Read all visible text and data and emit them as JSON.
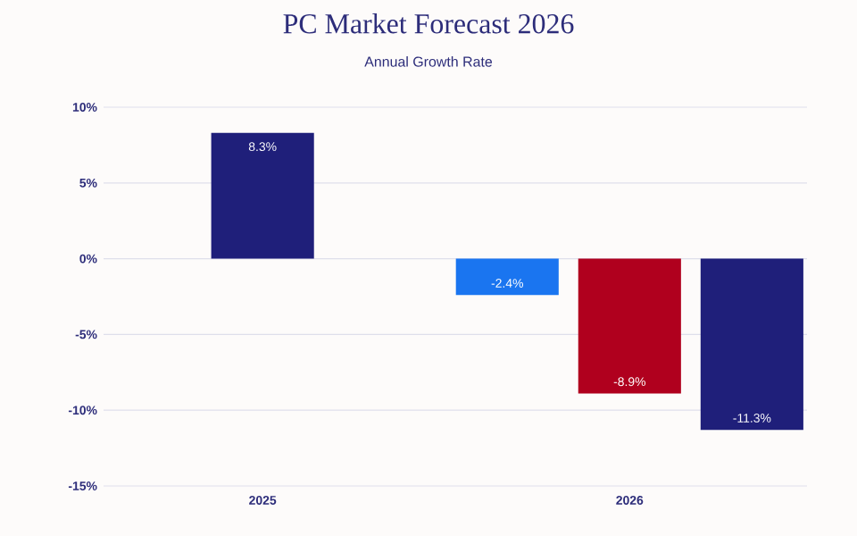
{
  "chart_data": {
    "type": "bar",
    "title": "PC Market Forecast 2026",
    "subtitle": "Annual Growth Rate",
    "categories": [
      "2025",
      null,
      null,
      "2026",
      null
    ],
    "values": [
      8.3,
      null,
      -2.4,
      -8.9,
      -11.3
    ],
    "colors": [
      "#1f1f7a",
      "#1f1f7a",
      "#1a75f0",
      "#b0001e",
      "#1f1f7a"
    ],
    "value_labels": [
      "8.3%",
      null,
      "-2.4%",
      "-8.9%",
      "-11.3%"
    ],
    "ylim": [
      -15,
      10
    ],
    "yticks": [
      {
        "value": -15,
        "label": "-15%"
      },
      {
        "value": -10,
        "label": "-10%"
      },
      {
        "value": -5,
        "label": "-5%"
      },
      {
        "value": 0,
        "label": "0%"
      },
      {
        "value": 5,
        "label": "5%"
      },
      {
        "value": 10,
        "label": "10%"
      }
    ],
    "grid": "y"
  }
}
